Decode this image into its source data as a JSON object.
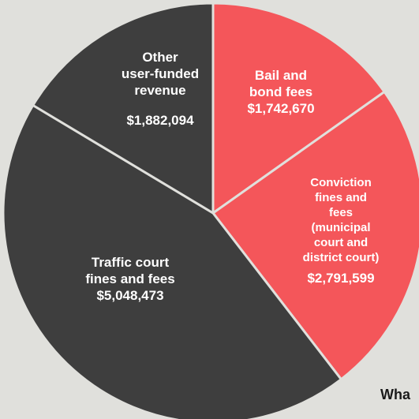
{
  "chart_data": {
    "type": "pie",
    "categories": [
      "Bail and\nbond fees",
      "Conviction\nfines and fees\n(municipal court and\ndistrict court)",
      "Traffic court\nfines and fees",
      "Other\nuser-funded\nrevenue"
    ],
    "values": [
      1742670,
      2791599,
      5048473,
      1882094
    ],
    "value_labels": [
      "$1,742,670",
      "$2,791,599",
      "$5,048,473",
      "$1,882,094"
    ],
    "colors": [
      "#f4565a",
      "#f4565a",
      "#3e3e3e",
      "#3e3e3e"
    ],
    "footer_text": "Wha"
  }
}
